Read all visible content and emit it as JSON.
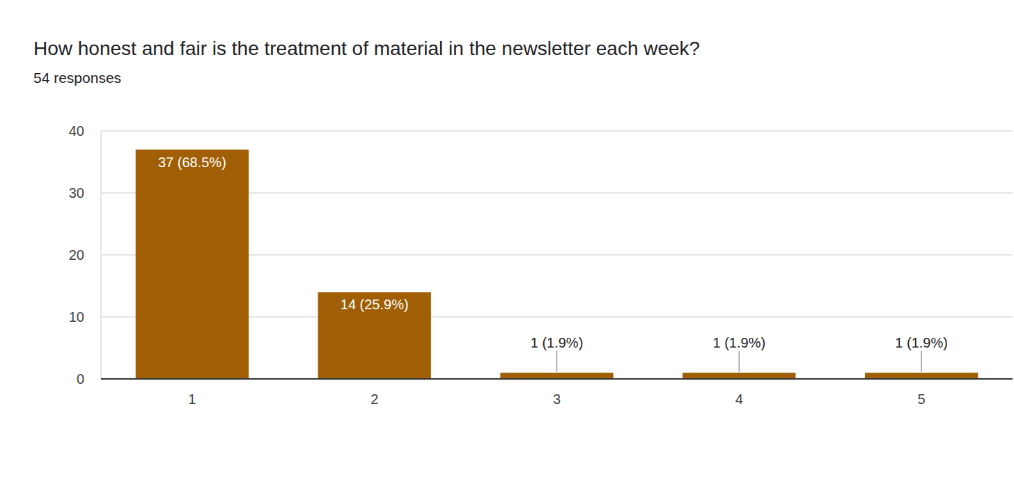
{
  "chart_data": {
    "type": "bar",
    "title": "How honest and fair is the treatment of material in the newsletter each week?",
    "subtitle": "54 responses",
    "categories": [
      "1",
      "2",
      "3",
      "4",
      "5"
    ],
    "values": [
      37,
      14,
      1,
      1,
      1
    ],
    "value_labels": [
      "37 (68.5%)",
      "14 (25.9%)",
      "1 (1.9%)",
      "1 (1.9%)",
      "1 (1.9%)"
    ],
    "color": "#a05f04",
    "ylim": [
      0,
      40
    ],
    "yticks": [
      0,
      10,
      20,
      30,
      40
    ],
    "grid": true,
    "data_labels": true
  }
}
